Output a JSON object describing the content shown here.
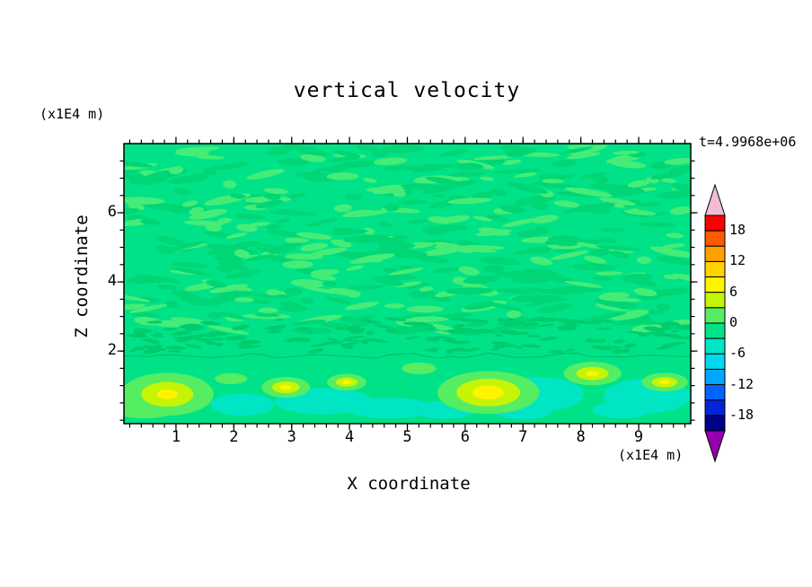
{
  "chart_data": {
    "type": "heatmap",
    "title": "vertical velocity",
    "time_annotation": "t=4.9968e+06",
    "xlabel": "X coordinate",
    "x_units": "(x1E4 m)",
    "ylabel": "Z coordinate",
    "y_units": "(x1E4 m)",
    "xlim": [
      0.1,
      9.9
    ],
    "ylim": [
      -0.1,
      8.0
    ],
    "x_ticks": [
      1,
      2,
      3,
      4,
      5,
      6,
      7,
      8,
      9
    ],
    "y_ticks": [
      2,
      4,
      6
    ],
    "grid": false,
    "colorbar": {
      "position": "right",
      "tick_labels": [
        "18",
        "12",
        "6",
        "0",
        "-6",
        "-12",
        "-18"
      ],
      "level_min": -21,
      "level_max": 21,
      "level_step": 3,
      "segment_colors_top_to_bottom": [
        "#fa0000",
        "#ff5a00",
        "#ffa000",
        "#ffd200",
        "#fff400",
        "#c6f407",
        "#55ed62",
        "#00e287",
        "#00e5c4",
        "#00d8ee",
        "#00a6ff",
        "#0064ff",
        "#0026d8",
        "#000089"
      ],
      "over_color": "#f2bcd4",
      "under_color": "#9400ab"
    },
    "field": {
      "base_color": "#00e287",
      "speckle_colors": [
        "#00d675",
        "#45ec77",
        "#00cc6d"
      ],
      "contour_line_color": "#00bf66",
      "cyan_color": "#00e5c4",
      "updraft_outer_color": "#55ed62",
      "updraft_mid_color": "#c6f407",
      "updraft_core_color": "#fff400",
      "description": "Near-zero (green) vertical velocity with fine mottled plus/minus 3 texture above z=2; below z=2 a row of convective features: yellow updraft cores near x=0.9, 2.9, 4.0, 6.4, 8.2, 9.4 and cyan downdraft patches between them.",
      "downdraft_patches": [
        {
          "x": 2.15,
          "z": 0.45,
          "rx": 0.55,
          "rz": 0.32
        },
        {
          "x": 3.55,
          "z": 0.55,
          "rx": 0.85,
          "rz": 0.38
        },
        {
          "x": 4.7,
          "z": 0.35,
          "rx": 0.75,
          "rz": 0.3
        },
        {
          "x": 5.65,
          "z": 0.3,
          "rx": 0.55,
          "rz": 0.26
        },
        {
          "x": 5.95,
          "z": 0.8,
          "rx": 0.4,
          "rz": 0.28
        },
        {
          "x": 7.0,
          "z": 0.3,
          "rx": 0.5,
          "rz": 0.28
        },
        {
          "x": 7.25,
          "z": 0.75,
          "rx": 0.8,
          "rz": 0.5
        },
        {
          "x": 8.7,
          "z": 0.3,
          "rx": 0.5,
          "rz": 0.25
        },
        {
          "x": 9.15,
          "z": 0.7,
          "rx": 0.75,
          "rz": 0.5
        }
      ],
      "updraft_spots": [
        {
          "x": 0.85,
          "z": 0.75,
          "outer_rx": 0.8,
          "outer_rz": 0.62,
          "mid_rx": 0.45,
          "mid_rz": 0.36,
          "core_rx": 0.18,
          "core_rz": 0.14
        },
        {
          "x": 0.45,
          "z": 0.35,
          "outer_rx": 0.55,
          "outer_rz": 0.3,
          "mid_rx": 0,
          "mid_rz": 0,
          "core_rx": 0,
          "core_rz": 0
        },
        {
          "x": 1.95,
          "z": 1.2,
          "outer_rx": 0.28,
          "outer_rz": 0.16,
          "mid_rx": 0,
          "mid_rz": 0,
          "core_rx": 0,
          "core_rz": 0
        },
        {
          "x": 2.9,
          "z": 0.95,
          "outer_rx": 0.42,
          "outer_rz": 0.3,
          "mid_rx": 0.24,
          "mid_rz": 0.17,
          "core_rx": 0.1,
          "core_rz": 0.07
        },
        {
          "x": 3.95,
          "z": 1.1,
          "outer_rx": 0.34,
          "outer_rz": 0.24,
          "mid_rx": 0.19,
          "mid_rz": 0.13,
          "core_rx": 0.08,
          "core_rz": 0.06
        },
        {
          "x": 5.2,
          "z": 1.5,
          "outer_rx": 0.3,
          "outer_rz": 0.17,
          "mid_rx": 0,
          "mid_rz": 0,
          "core_rx": 0,
          "core_rz": 0
        },
        {
          "x": 6.4,
          "z": 0.8,
          "outer_rx": 0.88,
          "outer_rz": 0.62,
          "mid_rx": 0.55,
          "mid_rz": 0.4,
          "core_rx": 0.27,
          "core_rz": 0.2
        },
        {
          "x": 8.2,
          "z": 1.35,
          "outer_rx": 0.5,
          "outer_rz": 0.34,
          "mid_rx": 0.28,
          "mid_rz": 0.19,
          "core_rx": 0.11,
          "core_rz": 0.08
        },
        {
          "x": 9.45,
          "z": 1.1,
          "outer_rx": 0.4,
          "outer_rz": 0.27,
          "mid_rx": 0.22,
          "mid_rz": 0.15,
          "core_rx": 0.09,
          "core_rz": 0.06
        }
      ]
    }
  }
}
